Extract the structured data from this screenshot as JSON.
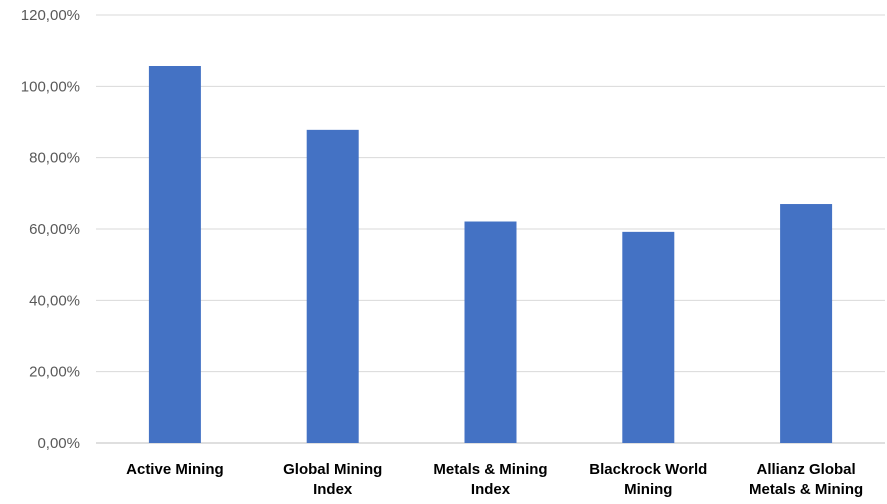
{
  "chart_data": {
    "type": "bar",
    "categories": [
      [
        "Active Mining"
      ],
      [
        "Global Mining",
        "Index"
      ],
      [
        "Metals & Mining",
        "Index"
      ],
      [
        "Blackrock World",
        "Mining"
      ],
      [
        "Allianz Global",
        "Metals & Mining"
      ]
    ],
    "series": [
      {
        "values": [
          105.7,
          87.8,
          62.1,
          59.2,
          67.0
        ]
      }
    ],
    "ylim": [
      0,
      120
    ],
    "yticks": [
      0,
      20,
      40,
      60,
      80,
      100,
      120
    ],
    "ytick_labels": [
      "0,00%",
      "20,00%",
      "40,00%",
      "60,00%",
      "80,00%",
      "100,00%",
      "120,00%"
    ],
    "grid": true,
    "legend": "none",
    "colors": {
      "bar": "#4472c4",
      "grid": "#d9d9d9",
      "tick_text": "#595959",
      "category_text": "#000000"
    }
  }
}
